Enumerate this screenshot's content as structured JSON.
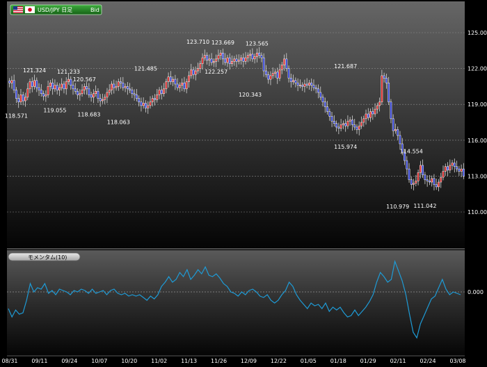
{
  "chart_data": [
    {
      "type": "candlestick",
      "symbol_label": "USD/JPY 日足",
      "price_side": "Bid",
      "flag_icons": [
        "us-flag-icon",
        "japan-flag-icon"
      ],
      "ylim": [
        108.0,
        127.5
      ],
      "y_ticks": [
        {
          "value": 110.0,
          "label": "110.000"
        },
        {
          "value": 113.0,
          "label": "113.000"
        },
        {
          "value": 116.0,
          "label": "116.000"
        },
        {
          "value": 119.0,
          "label": "119.000"
        },
        {
          "value": 122.0,
          "label": "122.000"
        },
        {
          "value": 125.0,
          "label": "125.000"
        }
      ],
      "grid": true,
      "up_color": "#e02424",
      "down_color": "#2a3ad8",
      "closes": [
        120.8,
        121.0,
        120.2,
        119.5,
        119.2,
        119.8,
        119.3,
        119.6,
        120.3,
        120.9,
        120.5,
        121.0,
        120.4,
        120.2,
        119.9,
        119.7,
        119.8,
        120.5,
        120.8,
        120.3,
        120.6,
        120.2,
        120.4,
        120.7,
        120.3,
        120.9,
        121.1,
        120.6,
        120.3,
        120.1,
        119.8,
        119.9,
        120.2,
        120.5,
        120.3,
        119.8,
        119.6,
        119.9,
        120.1,
        119.5,
        119.3,
        119.4,
        119.6,
        120.0,
        120.2,
        120.7,
        120.4,
        120.5,
        120.9,
        120.8,
        120.4,
        120.5,
        120.3,
        120.2,
        119.9,
        119.8,
        119.5,
        119.2,
        118.9,
        119.1,
        118.7,
        118.9,
        119.2,
        119.5,
        119.4,
        119.8,
        120.2,
        119.9,
        120.3,
        120.9,
        121.3,
        120.9,
        121.1,
        120.7,
        120.4,
        120.6,
        120.8,
        120.3,
        120.9,
        121.4,
        121.9,
        121.5,
        121.8,
        122.0,
        122.4,
        122.9,
        123.1,
        122.7,
        122.8,
        122.5,
        122.6,
        122.8,
        123.1,
        123.3,
        122.8,
        122.5,
        122.9,
        122.4,
        122.6,
        122.8,
        122.6,
        122.7,
        122.9,
        122.6,
        122.9,
        123.1,
        123.2,
        122.8,
        123.0,
        123.3,
        123.1,
        122.9,
        121.8,
        121.5,
        121.1,
        121.4,
        121.6,
        121.7,
        121.2,
        121.9,
        122.3,
        122.8,
        122.0,
        121.2,
        120.9,
        121.0,
        120.8,
        120.6,
        120.6,
        120.5,
        120.7,
        120.6,
        120.8,
        120.6,
        120.4,
        120.3,
        120.0,
        119.6,
        119.2,
        118.8,
        118.4,
        118.0,
        117.6,
        117.4,
        117.1,
        117.0,
        117.3,
        117.4,
        117.2,
        117.6,
        117.7,
        117.3,
        117.1,
        116.9,
        117.2,
        117.5,
        117.8,
        118.2,
        117.9,
        118.4,
        118.2,
        118.6,
        118.9,
        119.2,
        121.4,
        121.2,
        120.8,
        119.2,
        117.8,
        116.8,
        116.9,
        116.4,
        115.7,
        115.0,
        114.3,
        113.6,
        112.7,
        112.3,
        112.4,
        112.6,
        113.3,
        113.9,
        113.1,
        112.7,
        112.6,
        112.5,
        112.8,
        112.3,
        112.1,
        112.5,
        112.9,
        113.4,
        113.8,
        113.5,
        113.9,
        114.1,
        113.8,
        113.6,
        113.4,
        113.6,
        113.0
      ],
      "price_labels": [
        {
          "text": "121.324",
          "i": 11
        },
        {
          "text": "121.233",
          "i": 26
        },
        {
          "text": "120.567",
          "i": 33
        },
        {
          "text": "121.485",
          "i": 60
        },
        {
          "text": "123.710",
          "i": 83
        },
        {
          "text": "123.669",
          "i": 94
        },
        {
          "text": "123.565",
          "i": 109
        },
        {
          "text": "121.687",
          "i": 148
        },
        {
          "text": "114.554",
          "i": 177
        },
        {
          "text": "118.571",
          "i": 3
        },
        {
          "text": "119.055",
          "i": 20
        },
        {
          "text": "118.683",
          "i": 35
        },
        {
          "text": "118.063",
          "i": 48
        },
        {
          "text": "122.257",
          "i": 91
        },
        {
          "text": "120.343",
          "i": 106
        },
        {
          "text": "115.974",
          "i": 148
        },
        {
          "text": "110.979",
          "i": 171
        },
        {
          "text": "111.042",
          "i": 183
        }
      ],
      "x_ticks": [
        "08/31",
        "09/11",
        "09/24",
        "10/07",
        "10/20",
        "11/02",
        "11/13",
        "11/26",
        "12/09",
        "12/22",
        "01/05",
        "01/18",
        "01/29",
        "02/11",
        "02/24",
        "03/08"
      ]
    },
    {
      "type": "line",
      "indicator_label": "モメンタム(10)",
      "zero_label": "0.000",
      "series_color": "#1e9bd6",
      "ylim": [
        -4.5,
        3.2
      ],
      "values": [
        -1.2,
        -1.8,
        -1.3,
        -1.6,
        -1.5,
        -0.6,
        0.6,
        0.0,
        0.3,
        0.2,
        0.6,
        -0.1,
        0.1,
        -0.2,
        0.2,
        0.1,
        0.0,
        -0.2,
        0.1,
        0.0,
        0.2,
        0.1,
        -0.1,
        0.2,
        -0.1,
        0.0,
        0.1,
        -0.2,
        0.1,
        0.2,
        -0.1,
        -0.2,
        -0.1,
        -0.3,
        -0.2,
        -0.3,
        -0.2,
        -0.4,
        -0.6,
        -0.3,
        -0.5,
        -0.2,
        0.4,
        0.7,
        1.1,
        0.7,
        0.9,
        1.4,
        1.1,
        1.6,
        0.9,
        1.2,
        1.6,
        1.3,
        1.8,
        1.2,
        1.1,
        1.3,
        1.0,
        0.6,
        0.4,
        0.0,
        -0.1,
        -0.3,
        0.0,
        -0.2,
        0.1,
        0.2,
        0.0,
        -0.3,
        -0.4,
        -0.2,
        -0.6,
        -0.8,
        -0.6,
        -0.2,
        0.1,
        0.7,
        0.4,
        -0.2,
        -0.6,
        -0.9,
        -1.2,
        -0.8,
        -1.0,
        -0.9,
        -1.2,
        -0.8,
        -1.4,
        -1.1,
        -1.3,
        -1.1,
        -1.5,
        -1.8,
        -1.7,
        -1.3,
        -1.7,
        -1.4,
        -1.1,
        -0.7,
        -0.2,
        0.7,
        1.4,
        1.1,
        0.7,
        0.9,
        2.2,
        1.5,
        0.8,
        -0.2,
        -1.6,
        -2.9,
        -3.3,
        -2.3,
        -1.7,
        -1.1,
        -0.5,
        -0.3,
        0.3,
        0.9,
        0.2,
        -0.2,
        0.0,
        -0.1,
        -0.2
      ]
    }
  ]
}
